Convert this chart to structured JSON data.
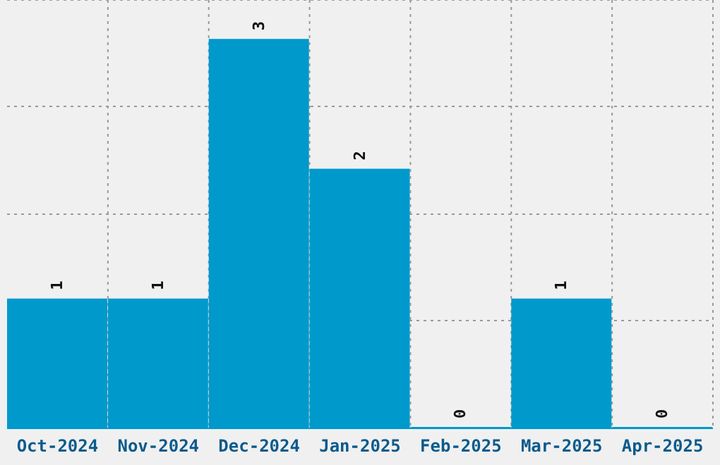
{
  "chart_data": {
    "type": "bar",
    "categories": [
      "Oct-2024",
      "Nov-2024",
      "Dec-2024",
      "Jan-2025",
      "Feb-2025",
      "Mar-2025",
      "Apr-2025"
    ],
    "values": [
      1,
      1,
      3,
      2,
      0,
      1,
      0
    ],
    "color": "#0099cc",
    "data_labels": true,
    "grid": true,
    "tick_labels": "x",
    "ylim": [
      0,
      3.3
    ],
    "yticks": [
      {
        "value": 0,
        "label": null
      },
      {
        "value": 0.83,
        "label": null
      },
      {
        "value": 1.65,
        "label": null
      },
      {
        "value": 2.48,
        "label": null
      },
      {
        "value": 3.3,
        "label": null
      }
    ]
  }
}
